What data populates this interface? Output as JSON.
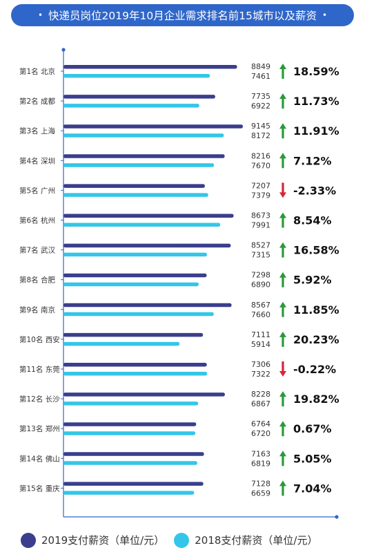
{
  "title": "快递员岗位2019年10月企业需求排名前15城市以及薪资",
  "title_dot": "•",
  "colors": {
    "title_bg": "#2f66c9",
    "series_2019": "#3a3e8c",
    "series_2018": "#34c6e8",
    "up": "#2a9a3a",
    "down": "#d6243a",
    "axis": "#2f66c9"
  },
  "chart_data": {
    "type": "bar",
    "orientation": "horizontal",
    "categories": [
      "第1名 北京",
      "第2名 成都",
      "第3名 上海",
      "第4名 深圳",
      "第5名 广州",
      "第6名 杭州",
      "第7名 武汉",
      "第8名 合肥",
      "第9名 南京",
      "第10名 西安",
      "第11名 东莞",
      "第12名 长沙",
      "第13名 郑州",
      "第14名 佛山",
      "第15名 重庆"
    ],
    "series": [
      {
        "name": "2019支付薪资（单位/元）",
        "values": [
          8849,
          7735,
          9145,
          8216,
          7207,
          8673,
          8527,
          7298,
          8567,
          7111,
          7306,
          8228,
          6764,
          7163,
          7128
        ]
      },
      {
        "name": "2018支付薪资（单位/元）",
        "values": [
          7461,
          6922,
          8172,
          7670,
          7379,
          7991,
          7315,
          6890,
          7660,
          5914,
          7322,
          6867,
          6720,
          6819,
          6659
        ]
      }
    ],
    "change_labels": [
      "18.59%",
      "11.73%",
      "11.91%",
      "7.12%",
      "-2.33%",
      "8.54%",
      "16.58%",
      "5.92%",
      "11.85%",
      "20.23%",
      "-0.22%",
      "19.82%",
      "0.67%",
      "5.05%",
      "7.04%"
    ],
    "change_direction": [
      "up",
      "up",
      "up",
      "up",
      "down",
      "up",
      "up",
      "up",
      "up",
      "up",
      "down",
      "up",
      "up",
      "up",
      "up"
    ],
    "legend_position": "bottom",
    "grid": false
  }
}
